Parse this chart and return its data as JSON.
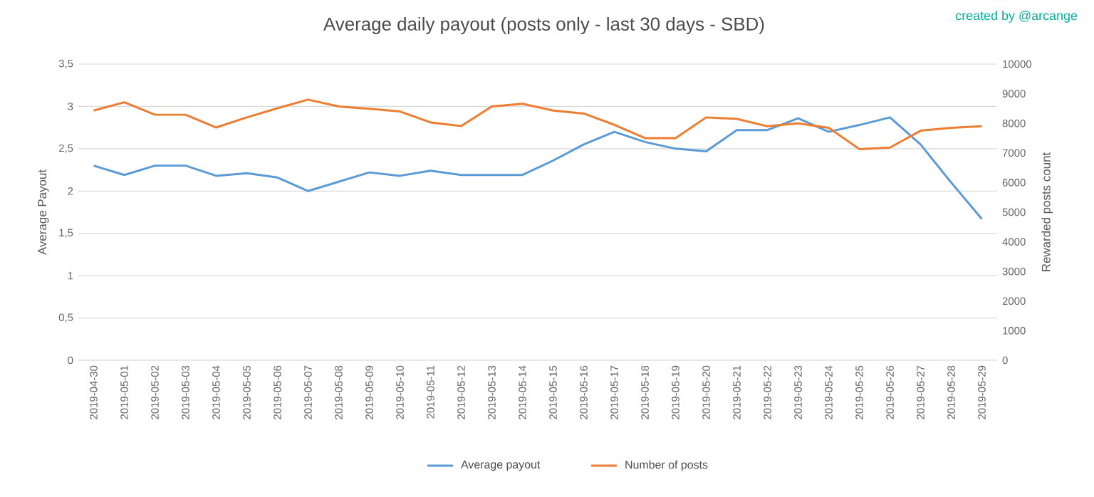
{
  "chart_data": {
    "type": "line",
    "title": "Average daily payout (posts only - last 30 days - SBD)",
    "ylabel": "Average Payout",
    "y2label": "Rewarded posts count",
    "annotations": [
      "created by @arcange"
    ],
    "categories": [
      "2019-04-30",
      "2019-05-01",
      "2019-05-02",
      "2019-05-03",
      "2019-05-04",
      "2019-05-05",
      "2019-05-06",
      "2019-05-07",
      "2019-05-08",
      "2019-05-09",
      "2019-05-10",
      "2019-05-11",
      "2019-05-12",
      "2019-05-13",
      "2019-05-14",
      "2019-05-15",
      "2019-05-16",
      "2019-05-17",
      "2019-05-18",
      "2019-05-19",
      "2019-05-20",
      "2019-05-21",
      "2019-05-22",
      "2019-05-23",
      "2019-05-24",
      "2019-05-25",
      "2019-05-26",
      "2019-05-27",
      "2019-05-28",
      "2019-05-29"
    ],
    "series": [
      {
        "name": "Average payout",
        "color": "#5b9bd5",
        "values": [
          2.3,
          2.19,
          2.3,
          2.3,
          2.18,
          2.21,
          2.16,
          2.0,
          2.11,
          2.22,
          2.18,
          2.24,
          2.19,
          2.19,
          2.19,
          2.36,
          2.55,
          2.7,
          2.58,
          2.5,
          2.47,
          2.72,
          2.72,
          2.86,
          2.7,
          2.78,
          2.87,
          2.55,
          2.1,
          1.67
        ]
      },
      {
        "name": "Number of posts",
        "color": "#ed7d31",
        "axis": "y2",
        "values": [
          8430,
          8710,
          8290,
          8290,
          7860,
          8200,
          8510,
          8800,
          8570,
          8490,
          8400,
          8030,
          7910,
          8570,
          8660,
          8430,
          8330,
          7950,
          7500,
          7500,
          8200,
          8150,
          7900,
          8000,
          7850,
          7130,
          7180,
          7750,
          7850,
          7900
        ]
      }
    ],
    "ylim": [
      0,
      3.5
    ],
    "yticks": [
      0,
      {
        "value": 0.5,
        "label": "0,5"
      },
      1,
      {
        "value": 1.5,
        "label": "1,5"
      },
      2,
      {
        "value": 2.5,
        "label": "2,5"
      },
      3,
      {
        "value": 3.5,
        "label": "3,5"
      }
    ],
    "y2lim": [
      0,
      10000
    ],
    "y2ticks": [
      0,
      1000,
      2000,
      3000,
      4000,
      5000,
      6000,
      7000,
      8000,
      9000,
      10000
    ],
    "grid": "y",
    "legend": "bottom",
    "line_style": "solid",
    "marker": "none"
  }
}
